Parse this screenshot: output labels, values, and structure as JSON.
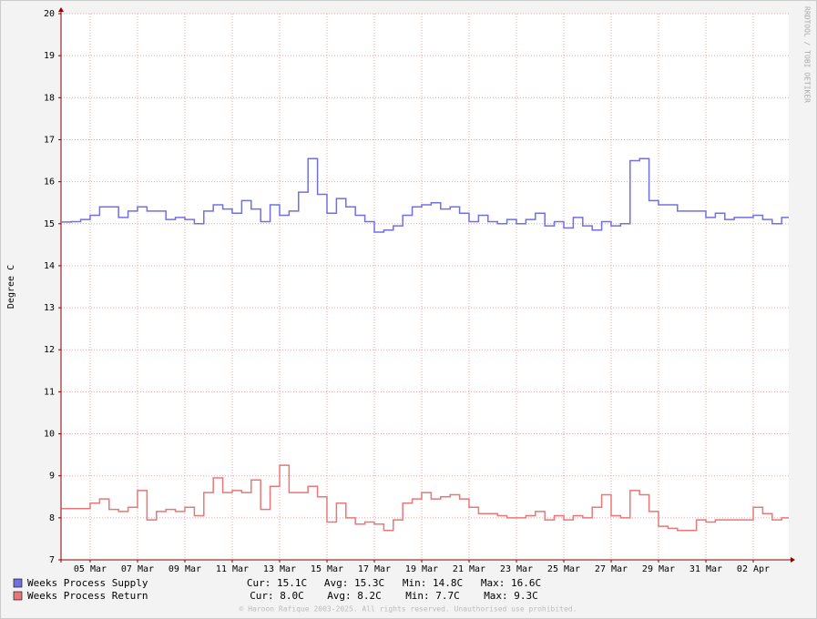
{
  "chart_data": {
    "type": "step-line",
    "y_label": "Degree C",
    "watermark": "RRDTOOL / TOBI OETIKER",
    "footer": "© Haroon Rafique 2003-2025. All rights reserved. Unauthorised use prohibited.",
    "grid": true,
    "ylim": [
      7,
      20
    ],
    "yticks": [
      7,
      8,
      9,
      10,
      11,
      12,
      13,
      14,
      15,
      16,
      17,
      18,
      19,
      20
    ],
    "xlim": [
      3.77,
      34.5
    ],
    "xticks": [
      {
        "value": 5,
        "label": "05 Mar"
      },
      {
        "value": 7,
        "label": "07 Mar"
      },
      {
        "value": 9,
        "label": "09 Mar"
      },
      {
        "value": 11,
        "label": "11 Mar"
      },
      {
        "value": 13,
        "label": "13 Mar"
      },
      {
        "value": 15,
        "label": "15 Mar"
      },
      {
        "value": 17,
        "label": "17 Mar"
      },
      {
        "value": 19,
        "label": "19 Mar"
      },
      {
        "value": 21,
        "label": "21 Mar"
      },
      {
        "value": 23,
        "label": "23 Mar"
      },
      {
        "value": 25,
        "label": "25 Mar"
      },
      {
        "value": 27,
        "label": "27 Mar"
      },
      {
        "value": 29,
        "label": "29 Mar"
      },
      {
        "value": 31,
        "label": "31 Mar"
      },
      {
        "value": 33,
        "label": "02 Apr"
      }
    ],
    "x": [
      3.8,
      4.2,
      4.6,
      5,
      5.4,
      5.8,
      6.2,
      6.6,
      7,
      7.4,
      7.8,
      8.2,
      8.6,
      9,
      9.4,
      9.8,
      10.2,
      10.6,
      11,
      11.4,
      11.8,
      12.2,
      12.6,
      13,
      13.4,
      13.8,
      14.2,
      14.6,
      15,
      15.4,
      15.8,
      16.2,
      16.6,
      17,
      17.4,
      17.8,
      18.2,
      18.6,
      19,
      19.4,
      19.8,
      20.2,
      20.6,
      21,
      21.4,
      21.8,
      22.2,
      22.6,
      23,
      23.4,
      23.8,
      24.2,
      24.6,
      25,
      25.4,
      25.8,
      26.2,
      26.6,
      27,
      27.4,
      27.8,
      28.2,
      28.6,
      29,
      29.4,
      29.8,
      30.2,
      30.6,
      31,
      31.4,
      31.8,
      32.2,
      32.6,
      33,
      33.4,
      33.8,
      34.2
    ],
    "series": [
      {
        "name": "Weeks Process Supply",
        "color": "#7070e0",
        "stats": [
          "Cur: 15.1C",
          "Avg: 15.3C",
          "Min: 14.8C",
          "Max: 16.6C"
        ],
        "values": [
          15.04,
          15.05,
          15.1,
          15.2,
          15.4,
          15.4,
          15.15,
          15.3,
          15.4,
          15.3,
          15.3,
          15.1,
          15.15,
          15.1,
          15.0,
          15.3,
          15.45,
          15.35,
          15.25,
          15.55,
          15.35,
          15.05,
          15.45,
          15.2,
          15.3,
          15.75,
          16.55,
          15.7,
          15.25,
          15.6,
          15.4,
          15.2,
          15.05,
          14.8,
          14.85,
          14.95,
          15.2,
          15.4,
          15.45,
          15.5,
          15.35,
          15.4,
          15.25,
          15.05,
          15.2,
          15.05,
          15.0,
          15.1,
          15.0,
          15.1,
          15.25,
          14.95,
          15.05,
          14.9,
          15.15,
          14.95,
          14.85,
          15.05,
          14.95,
          15.0,
          16.5,
          16.55,
          15.55,
          15.45,
          15.45,
          15.3,
          15.3,
          15.3,
          15.15,
          15.25,
          15.1,
          15.15,
          15.15,
          15.2,
          15.1,
          15.0,
          15.15
        ]
      },
      {
        "name": "Weeks Process Return",
        "color": "#e87878",
        "stats": [
          "Cur: 8.0C",
          "Avg: 8.2C",
          "Min: 7.7C",
          "Max: 9.3C"
        ],
        "values": [
          8.22,
          8.22,
          8.22,
          8.35,
          8.45,
          8.2,
          8.15,
          8.25,
          8.65,
          7.95,
          8.15,
          8.2,
          8.15,
          8.25,
          8.05,
          8.6,
          8.95,
          8.6,
          8.65,
          8.6,
          8.9,
          8.2,
          8.75,
          9.25,
          8.6,
          8.6,
          8.75,
          8.5,
          7.9,
          8.35,
          8.0,
          7.85,
          7.9,
          7.85,
          7.7,
          7.95,
          8.35,
          8.45,
          8.6,
          8.45,
          8.5,
          8.55,
          8.45,
          8.25,
          8.1,
          8.1,
          8.05,
          8.0,
          8.0,
          8.05,
          8.15,
          7.95,
          8.05,
          7.95,
          8.05,
          8.0,
          8.25,
          8.55,
          8.05,
          8.0,
          8.65,
          8.55,
          8.15,
          7.8,
          7.75,
          7.7,
          7.7,
          7.95,
          7.9,
          7.95,
          7.95,
          7.95,
          7.95,
          8.25,
          8.1,
          7.95,
          8.0
        ]
      }
    ]
  }
}
